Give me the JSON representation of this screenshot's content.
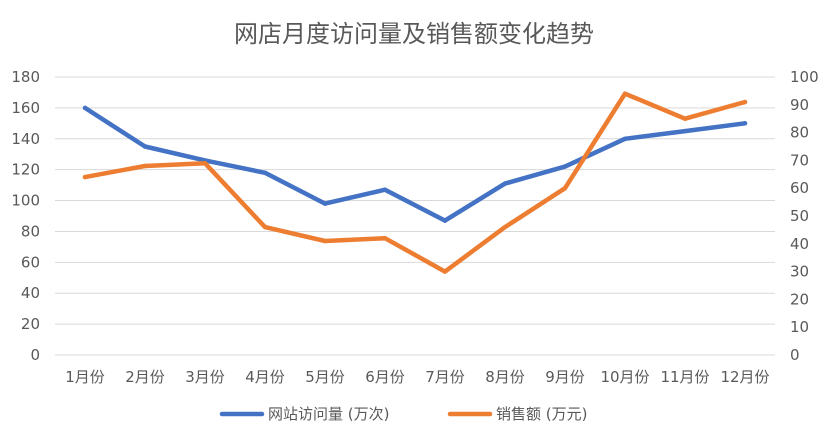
{
  "chart_data": {
    "type": "line",
    "title": "网店月度访问量及销售额变化趋势",
    "categories": [
      "1月份",
      "2月份",
      "3月份",
      "4月份",
      "5月份",
      "6月份",
      "7月份",
      "8月份",
      "9月份",
      "10月份",
      "11月份",
      "12月份"
    ],
    "series": [
      {
        "name": "网站访问量 (万次)",
        "axis": "left",
        "color": "#4472C4",
        "values": [
          160,
          135,
          126,
          118,
          98,
          107,
          87,
          111,
          122,
          140,
          145,
          150
        ]
      },
      {
        "name": "销售额 (万元)",
        "axis": "right",
        "color": "#ED7D31",
        "values": [
          64,
          68,
          69,
          46,
          41,
          42,
          30,
          46,
          60,
          94,
          85,
          91
        ]
      }
    ],
    "y_left": {
      "min": 0,
      "max": 180,
      "step": 20,
      "ticks": [
        "0",
        "20",
        "40",
        "60",
        "80",
        "100",
        "120",
        "140",
        "160",
        "180"
      ]
    },
    "y_right": {
      "min": 0,
      "max": 100,
      "step": 10,
      "ticks": [
        "0",
        "10",
        "20",
        "30",
        "40",
        "50",
        "60",
        "70",
        "80",
        "90",
        "100"
      ]
    },
    "grid": true,
    "legend": "bottom"
  }
}
